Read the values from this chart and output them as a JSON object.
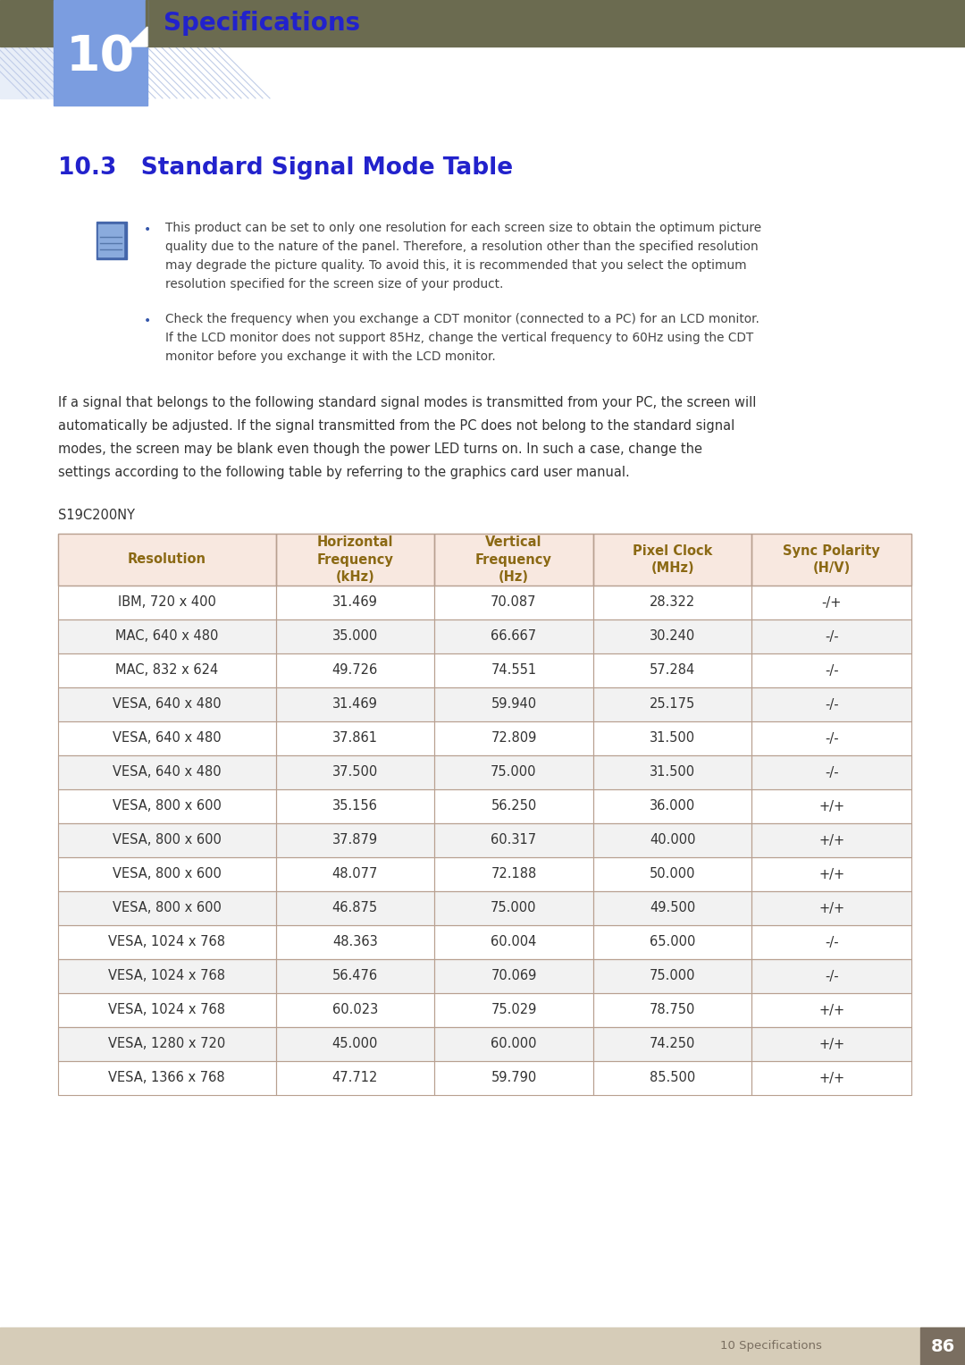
{
  "page_bg": "#ffffff",
  "header_bg": "#6b6b50",
  "chapter_num": "10",
  "chapter_title": "Specifications",
  "chapter_title_color": "#2222cc",
  "tab_color": "#7b9de0",
  "section_title": "10.3   Standard Signal Mode Table",
  "section_title_color": "#2222cc",
  "footer_bg": "#d6ccb8",
  "footer_page_bg": "#7a6e60",
  "footer_text": "10 Specifications",
  "footer_page_num": "86",
  "body_text_color": "#444444",
  "model_label": "S19C200NY",
  "table_header_bg": "#f8e8e0",
  "table_header_text_color": "#8B6914",
  "table_row_odd_bg": "#ffffff",
  "table_row_even_bg": "#f2f2f2",
  "table_border_color": "#b8a090",
  "table_headers": [
    "Resolution",
    "Horizontal\nFrequency\n(kHz)",
    "Vertical\nFrequency\n(Hz)",
    "Pixel Clock\n(MHz)",
    "Sync Polarity\n(H/V)"
  ],
  "table_rows": [
    [
      "IBM, 720 x 400",
      "31.469",
      "70.087",
      "28.322",
      "-/+"
    ],
    [
      "MAC, 640 x 480",
      "35.000",
      "66.667",
      "30.240",
      "-/-"
    ],
    [
      "MAC, 832 x 624",
      "49.726",
      "74.551",
      "57.284",
      "-/-"
    ],
    [
      "VESA, 640 x 480",
      "31.469",
      "59.940",
      "25.175",
      "-/-"
    ],
    [
      "VESA, 640 x 480",
      "37.861",
      "72.809",
      "31.500",
      "-/-"
    ],
    [
      "VESA, 640 x 480",
      "37.500",
      "75.000",
      "31.500",
      "-/-"
    ],
    [
      "VESA, 800 x 600",
      "35.156",
      "56.250",
      "36.000",
      "+/+"
    ],
    [
      "VESA, 800 x 600",
      "37.879",
      "60.317",
      "40.000",
      "+/+"
    ],
    [
      "VESA, 800 x 600",
      "48.077",
      "72.188",
      "50.000",
      "+/+"
    ],
    [
      "VESA, 800 x 600",
      "46.875",
      "75.000",
      "49.500",
      "+/+"
    ],
    [
      "VESA, 1024 x 768",
      "48.363",
      "60.004",
      "65.000",
      "-/-"
    ],
    [
      "VESA, 1024 x 768",
      "56.476",
      "70.069",
      "75.000",
      "-/-"
    ],
    [
      "VESA, 1024 x 768",
      "60.023",
      "75.029",
      "78.750",
      "+/+"
    ],
    [
      "VESA, 1280 x 720",
      "45.000",
      "60.000",
      "74.250",
      "+/+"
    ],
    [
      "VESA, 1366 x 768",
      "47.712",
      "59.790",
      "85.500",
      "+/+"
    ]
  ],
  "note1_lines": [
    "This product can be set to only one resolution for each screen size to obtain the optimum picture",
    "quality due to the nature of the panel. Therefore, a resolution other than the specified resolution",
    "may degrade the picture quality. To avoid this, it is recommended that you select the optimum",
    "resolution specified for the screen size of your product."
  ],
  "note2_lines": [
    "Check the frequency when you exchange a CDT monitor (connected to a PC) for an LCD monitor.",
    "If the LCD monitor does not support 85Hz, change the vertical frequency to 60Hz using the CDT",
    "monitor before you exchange it with the LCD monitor."
  ],
  "body_lines": [
    "If a signal that belongs to the following standard signal modes is transmitted from your PC, the screen will",
    "automatically be adjusted. If the signal transmitted from the PC does not belong to the standard signal",
    "modes, the screen may be blank even though the power LED turns on. In such a case, change the",
    "settings according to the following table by referring to the graphics card user manual."
  ]
}
